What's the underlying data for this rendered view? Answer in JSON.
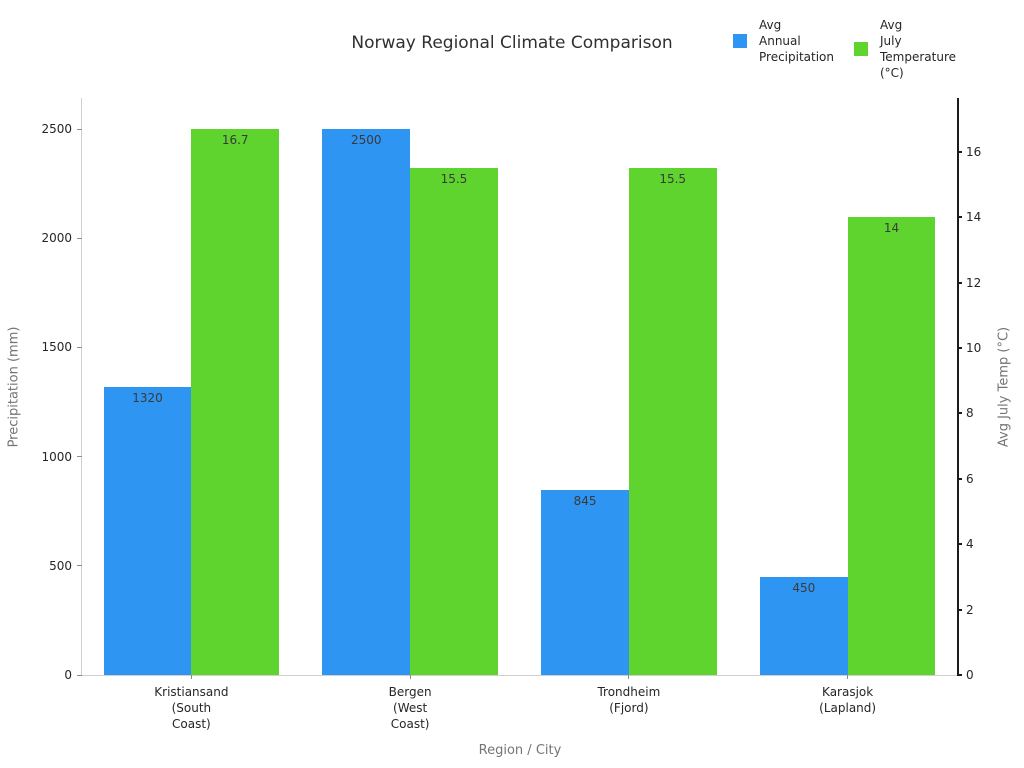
{
  "chart_data": {
    "type": "bar",
    "title": "Norway Regional Climate Comparison",
    "xlabel": "Region / City",
    "ylabel_left": "Precipitation (mm)",
    "ylabel_right": "Avg July Temp (°C)",
    "categories": [
      "Kristiansand\n(South\nCoast)",
      "Bergen\n(West\nCoast)",
      "Trondheim\n(Fjord)",
      "Karasjok\n(Lapland)"
    ],
    "series": [
      {
        "name": "Avg Annual Precipitation",
        "axis": "left",
        "color": "#2f95f2",
        "values": [
          1320,
          2500,
          845,
          450
        ],
        "labels": [
          "1320",
          "2500",
          "845",
          "450"
        ]
      },
      {
        "name": "Avg July Temperature (°C)",
        "axis": "right",
        "color": "#5fd32e",
        "values": [
          16.7,
          15.5,
          15.5,
          14
        ],
        "labels": [
          "16.7",
          "15.5",
          "15.5",
          "14"
        ]
      }
    ],
    "axes": {
      "left": {
        "ticks": [
          0,
          500,
          1000,
          1500,
          2000,
          2500
        ],
        "max": 2642
      },
      "right": {
        "ticks": [
          0,
          2,
          4,
          6,
          8,
          10,
          12,
          14,
          16
        ],
        "max": 17.65
      }
    },
    "grid": false,
    "legend_position": "top-right"
  },
  "legend": {
    "items": [
      {
        "label": "Avg\nAnnual\nPrecipitation"
      },
      {
        "label": "Avg\nJuly\nTemperature\n(°C)"
      }
    ]
  }
}
